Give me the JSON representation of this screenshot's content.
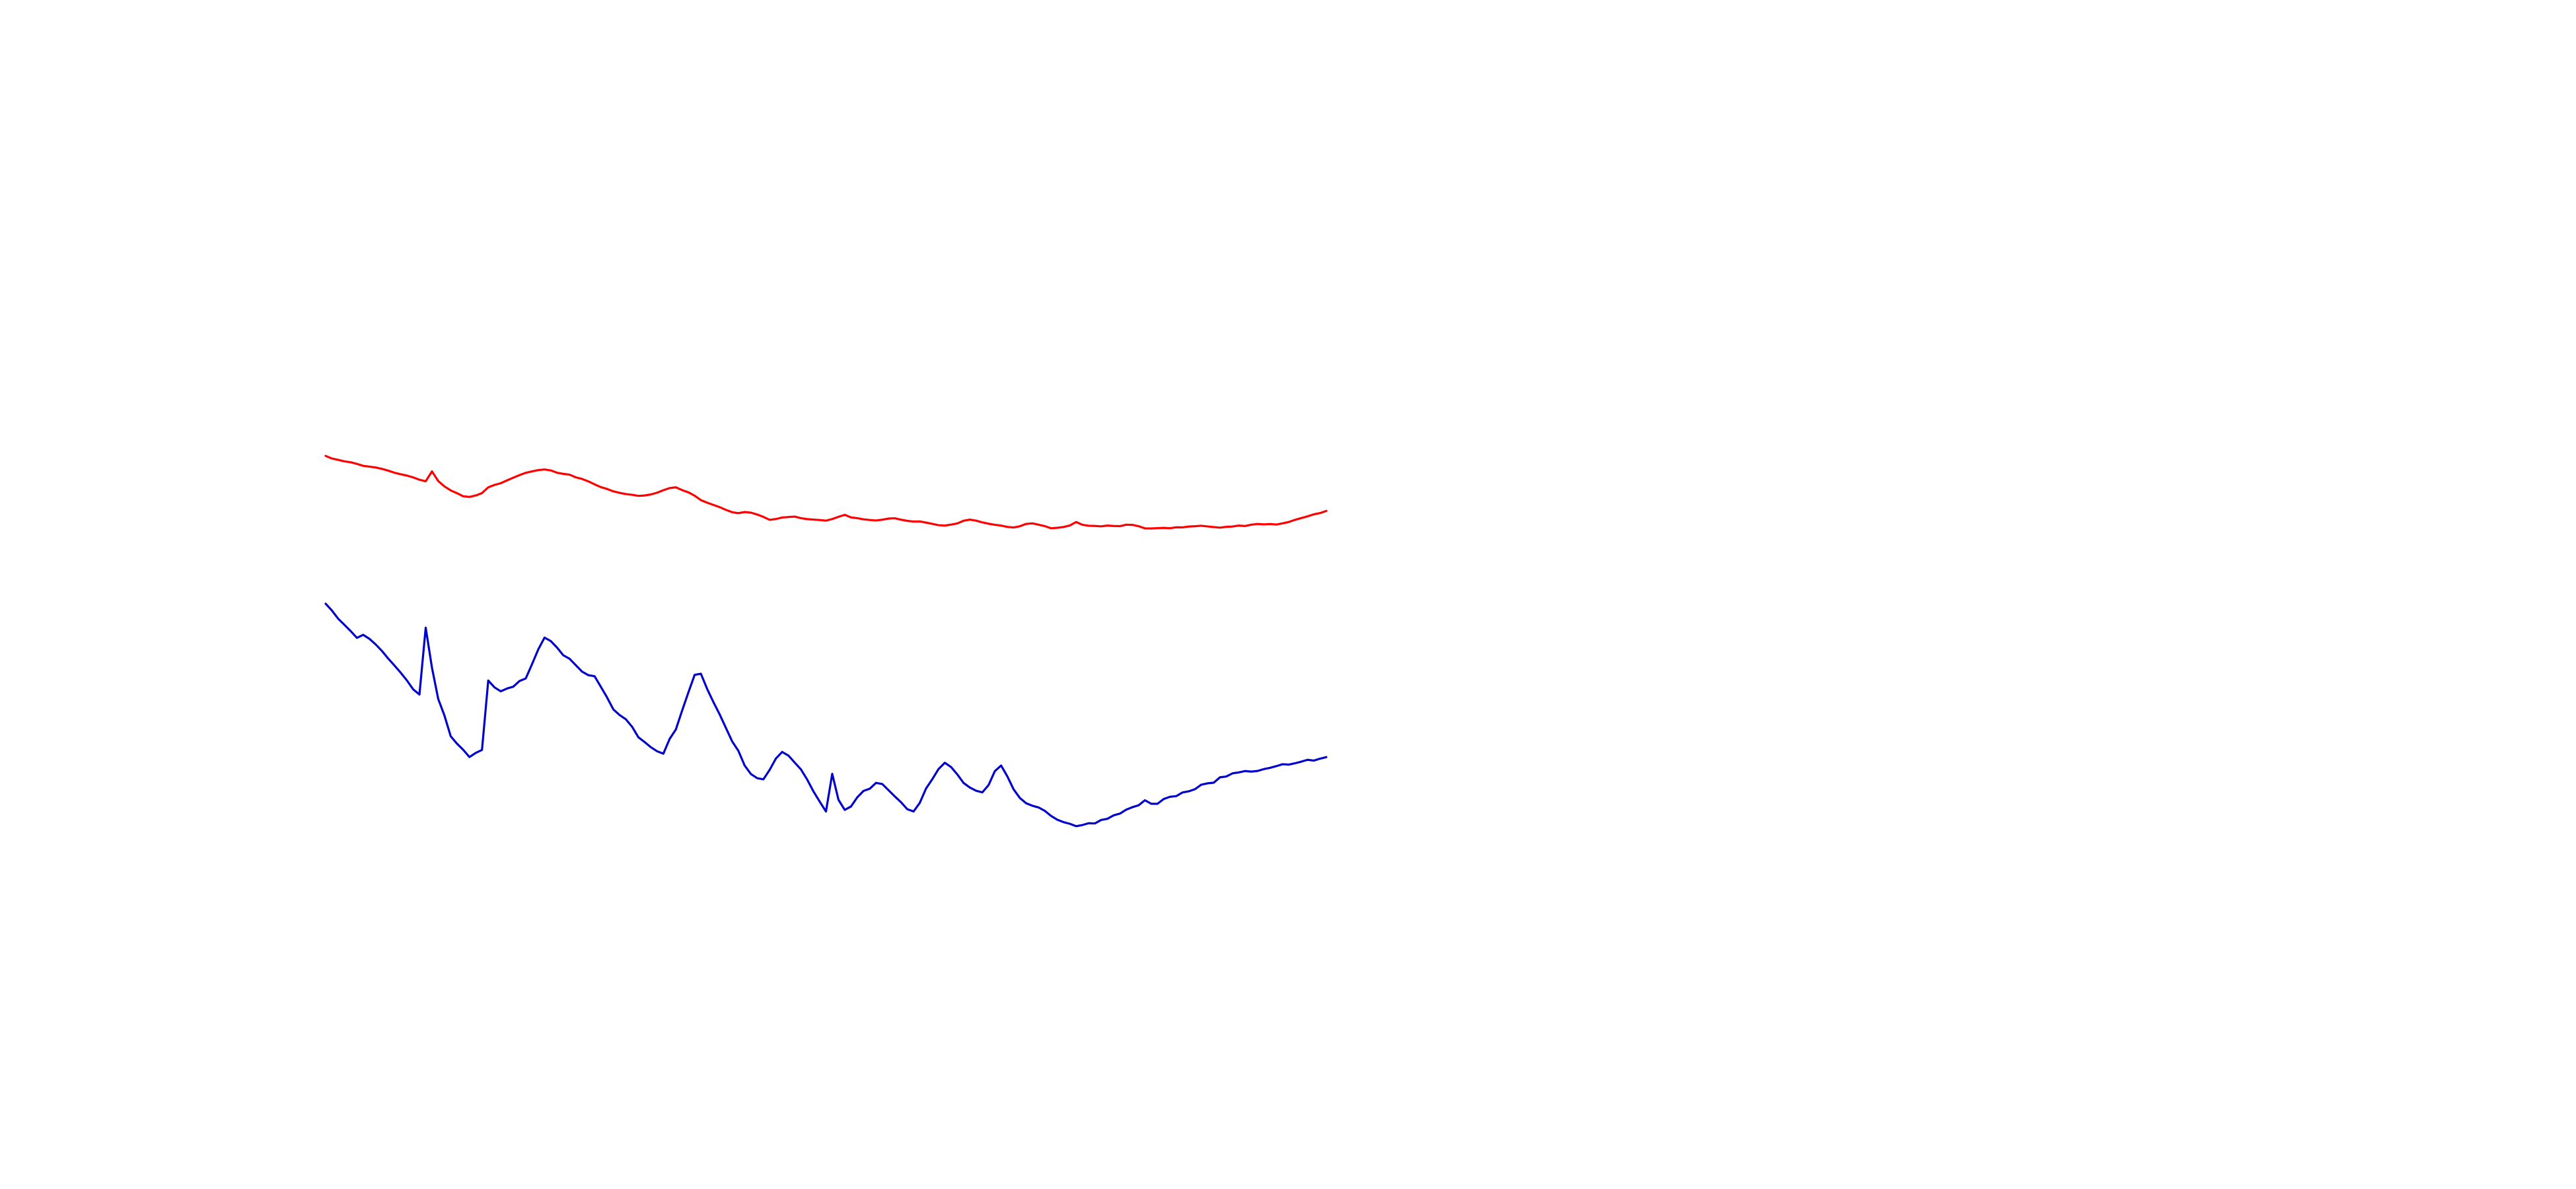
{
  "chart_data": {
    "type": "line",
    "title": "",
    "xlabel": "",
    "ylabel": "",
    "grid": false,
    "axes_visible": false,
    "x": [
      0,
      1,
      2,
      3,
      4,
      5,
      6,
      7,
      8,
      9,
      10,
      11,
      12,
      13,
      14,
      15,
      16,
      17,
      18,
      19,
      20,
      21,
      22,
      23,
      24,
      25,
      26,
      27,
      28,
      29,
      30,
      31,
      32,
      33,
      34,
      35,
      36,
      37,
      38,
      39,
      40,
      41,
      42,
      43,
      44,
      45,
      46,
      47,
      48,
      49,
      50,
      51,
      52,
      53,
      54,
      55,
      56,
      57,
      58,
      59,
      60,
      61,
      62,
      63,
      64,
      65,
      66,
      67,
      68,
      69,
      70,
      71,
      72,
      73,
      74,
      75,
      76,
      77,
      78,
      79,
      80,
      81,
      82,
      83,
      84,
      85,
      86,
      87,
      88,
      89,
      90,
      91,
      92,
      93,
      94,
      95,
      96,
      97,
      98,
      99,
      100,
      101,
      102,
      103,
      104,
      105,
      106,
      107,
      108,
      109,
      110,
      111,
      112,
      113,
      114,
      115,
      116,
      117,
      118,
      119,
      120,
      121,
      122,
      123,
      124,
      125,
      126,
      127,
      128,
      129,
      130,
      131,
      132,
      133,
      134,
      135,
      136,
      137,
      138,
      139,
      140,
      141,
      142,
      143,
      144,
      145,
      146,
      147,
      148,
      149,
      150,
      151,
      152,
      153,
      154,
      155,
      156,
      157,
      158,
      159,
      160
    ],
    "xlim": [
      0,
      160
    ],
    "ylim": [
      -1.5,
      4
    ],
    "series": [
      {
        "color": "#ff0000",
        "values": [
          3.38,
          3.353,
          3.339,
          3.323,
          3.314,
          3.297,
          3.277,
          3.268,
          3.26,
          3.245,
          3.227,
          3.205,
          3.189,
          3.175,
          3.156,
          3.132,
          3.116,
          3.219,
          3.119,
          3.062,
          3.021,
          2.992,
          2.96,
          2.953,
          2.968,
          2.993,
          3.053,
          3.078,
          3.096,
          3.125,
          3.153,
          3.18,
          3.204,
          3.219,
          3.232,
          3.239,
          3.229,
          3.205,
          3.193,
          3.185,
          3.157,
          3.14,
          3.115,
          3.084,
          3.055,
          3.036,
          3.011,
          2.996,
          2.983,
          2.975,
          2.964,
          2.968,
          2.979,
          2.997,
          3.023,
          3.045,
          3.053,
          3.024,
          3.001,
          2.966,
          2.92,
          2.893,
          2.87,
          2.847,
          2.818,
          2.794,
          2.784,
          2.796,
          2.789,
          2.77,
          2.745,
          2.715,
          2.723,
          2.739,
          2.744,
          2.748,
          2.732,
          2.722,
          2.717,
          2.713,
          2.706,
          2.723,
          2.746,
          2.767,
          2.74,
          2.732,
          2.72,
          2.713,
          2.708,
          2.716,
          2.728,
          2.731,
          2.716,
          2.704,
          2.697,
          2.698,
          2.686,
          2.673,
          2.659,
          2.655,
          2.665,
          2.677,
          2.705,
          2.717,
          2.706,
          2.688,
          2.674,
          2.663,
          2.655,
          2.641,
          2.635,
          2.648,
          2.672,
          2.678,
          2.664,
          2.649,
          2.627,
          2.632,
          2.64,
          2.656,
          2.692,
          2.663,
          2.653,
          2.651,
          2.647,
          2.655,
          2.651,
          2.649,
          2.664,
          2.662,
          2.648,
          2.626,
          2.625,
          2.628,
          2.631,
          2.627,
          2.637,
          2.636,
          2.645,
          2.648,
          2.653,
          2.646,
          2.639,
          2.633,
          2.642,
          2.645,
          2.655,
          2.65,
          2.664,
          2.672,
          2.667,
          2.671,
          2.666,
          2.678,
          2.692,
          2.715,
          2.733,
          2.751,
          2.772,
          2.785,
          2.807
        ]
      },
      {
        "color": "#0000cc",
        "values": [
          1.842,
          1.771,
          1.686,
          1.622,
          1.557,
          1.486,
          1.518,
          1.476,
          1.418,
          1.35,
          1.271,
          1.199,
          1.124,
          1.043,
          0.95,
          0.897,
          1.592,
          1.176,
          0.851,
          0.677,
          0.462,
          0.385,
          0.321,
          0.246,
          0.289,
          0.32,
          1.042,
          0.971,
          0.93,
          0.959,
          0.978,
          1.037,
          1.064,
          1.212,
          1.366,
          1.489,
          1.453,
          1.385,
          1.305,
          1.269,
          1.202,
          1.135,
          1.098,
          1.087,
          0.977,
          0.866,
          0.742,
          0.683,
          0.639,
          0.561,
          0.452,
          0.402,
          0.348,
          0.306,
          0.281,
          0.434,
          0.533,
          0.729,
          0.918,
          1.101,
          1.113,
          0.955,
          0.818,
          0.69,
          0.549,
          0.409,
          0.31,
          0.157,
          0.069,
          0.026,
          0.014,
          0.113,
          0.231,
          0.299,
          0.261,
          0.188,
          0.117,
          0.011,
          -0.112,
          -0.218,
          -0.321,
          0.071,
          -0.199,
          -0.304,
          -0.269,
          -0.174,
          -0.107,
          -0.084,
          -0.023,
          -0.035,
          -0.099,
          -0.164,
          -0.224,
          -0.297,
          -0.321,
          -0.231,
          -0.082,
          0.015,
          0.121,
          0.186,
          0.142,
          0.065,
          -0.024,
          -0.071,
          -0.105,
          -0.122,
          -0.046,
          0.099,
          0.157,
          0.045,
          -0.09,
          -0.18,
          -0.235,
          -0.261,
          -0.279,
          -0.315,
          -0.367,
          -0.407,
          -0.432,
          -0.449,
          -0.474,
          -0.462,
          -0.443,
          -0.445,
          -0.409,
          -0.397,
          -0.361,
          -0.343,
          -0.302,
          -0.276,
          -0.256,
          -0.204,
          -0.24,
          -0.241,
          -0.191,
          -0.168,
          -0.161,
          -0.123,
          -0.111,
          -0.089,
          -0.042,
          -0.028,
          -0.021,
          0.035,
          0.043,
          0.076,
          0.086,
          0.1,
          0.094,
          0.101,
          0.12,
          0.133,
          0.151,
          0.171,
          0.167,
          0.181,
          0.198,
          0.217,
          0.209,
          0.229,
          0.245
        ]
      }
    ]
  }
}
